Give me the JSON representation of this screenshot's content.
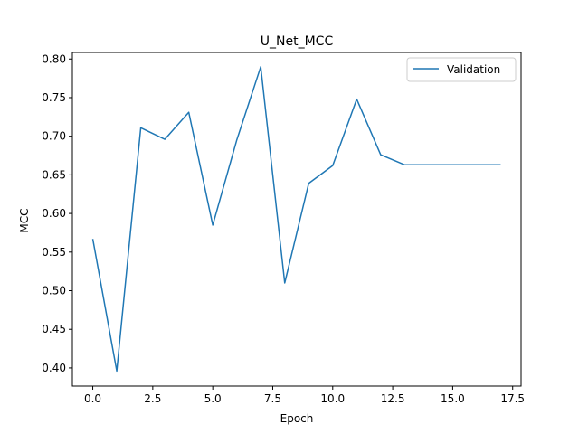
{
  "chart_data": {
    "type": "line",
    "title": "U_Net_MCC",
    "xlabel": "Epoch",
    "ylabel": "MCC",
    "xlim": [
      -0.85,
      17.85
    ],
    "ylim": [
      0.3765,
      0.8085
    ],
    "xticks": [
      0.0,
      2.5,
      5.0,
      7.5,
      10.0,
      12.5,
      15.0,
      17.5
    ],
    "xtick_labels": [
      "0.0",
      "2.5",
      "5.0",
      "7.5",
      "10.0",
      "12.5",
      "15.0",
      "17.5"
    ],
    "yticks": [
      0.4,
      0.45,
      0.5,
      0.55,
      0.6,
      0.65,
      0.7,
      0.75,
      0.8
    ],
    "ytick_labels": [
      "0.40",
      "0.45",
      "0.50",
      "0.55",
      "0.60",
      "0.65",
      "0.70",
      "0.75",
      "0.80"
    ],
    "grid": false,
    "legend_position": "top-right",
    "series": [
      {
        "name": "Validation",
        "color": "#1f77b4",
        "x": [
          0,
          1,
          2,
          3,
          4,
          5,
          6,
          7,
          8,
          9,
          10,
          11,
          12,
          13,
          14,
          15,
          16,
          17
        ],
        "values": [
          0.567,
          0.396,
          0.711,
          0.696,
          0.731,
          0.585,
          0.695,
          0.79,
          0.51,
          0.639,
          0.662,
          0.748,
          0.676,
          0.663,
          0.663,
          0.663,
          0.663,
          0.663
        ]
      }
    ]
  }
}
